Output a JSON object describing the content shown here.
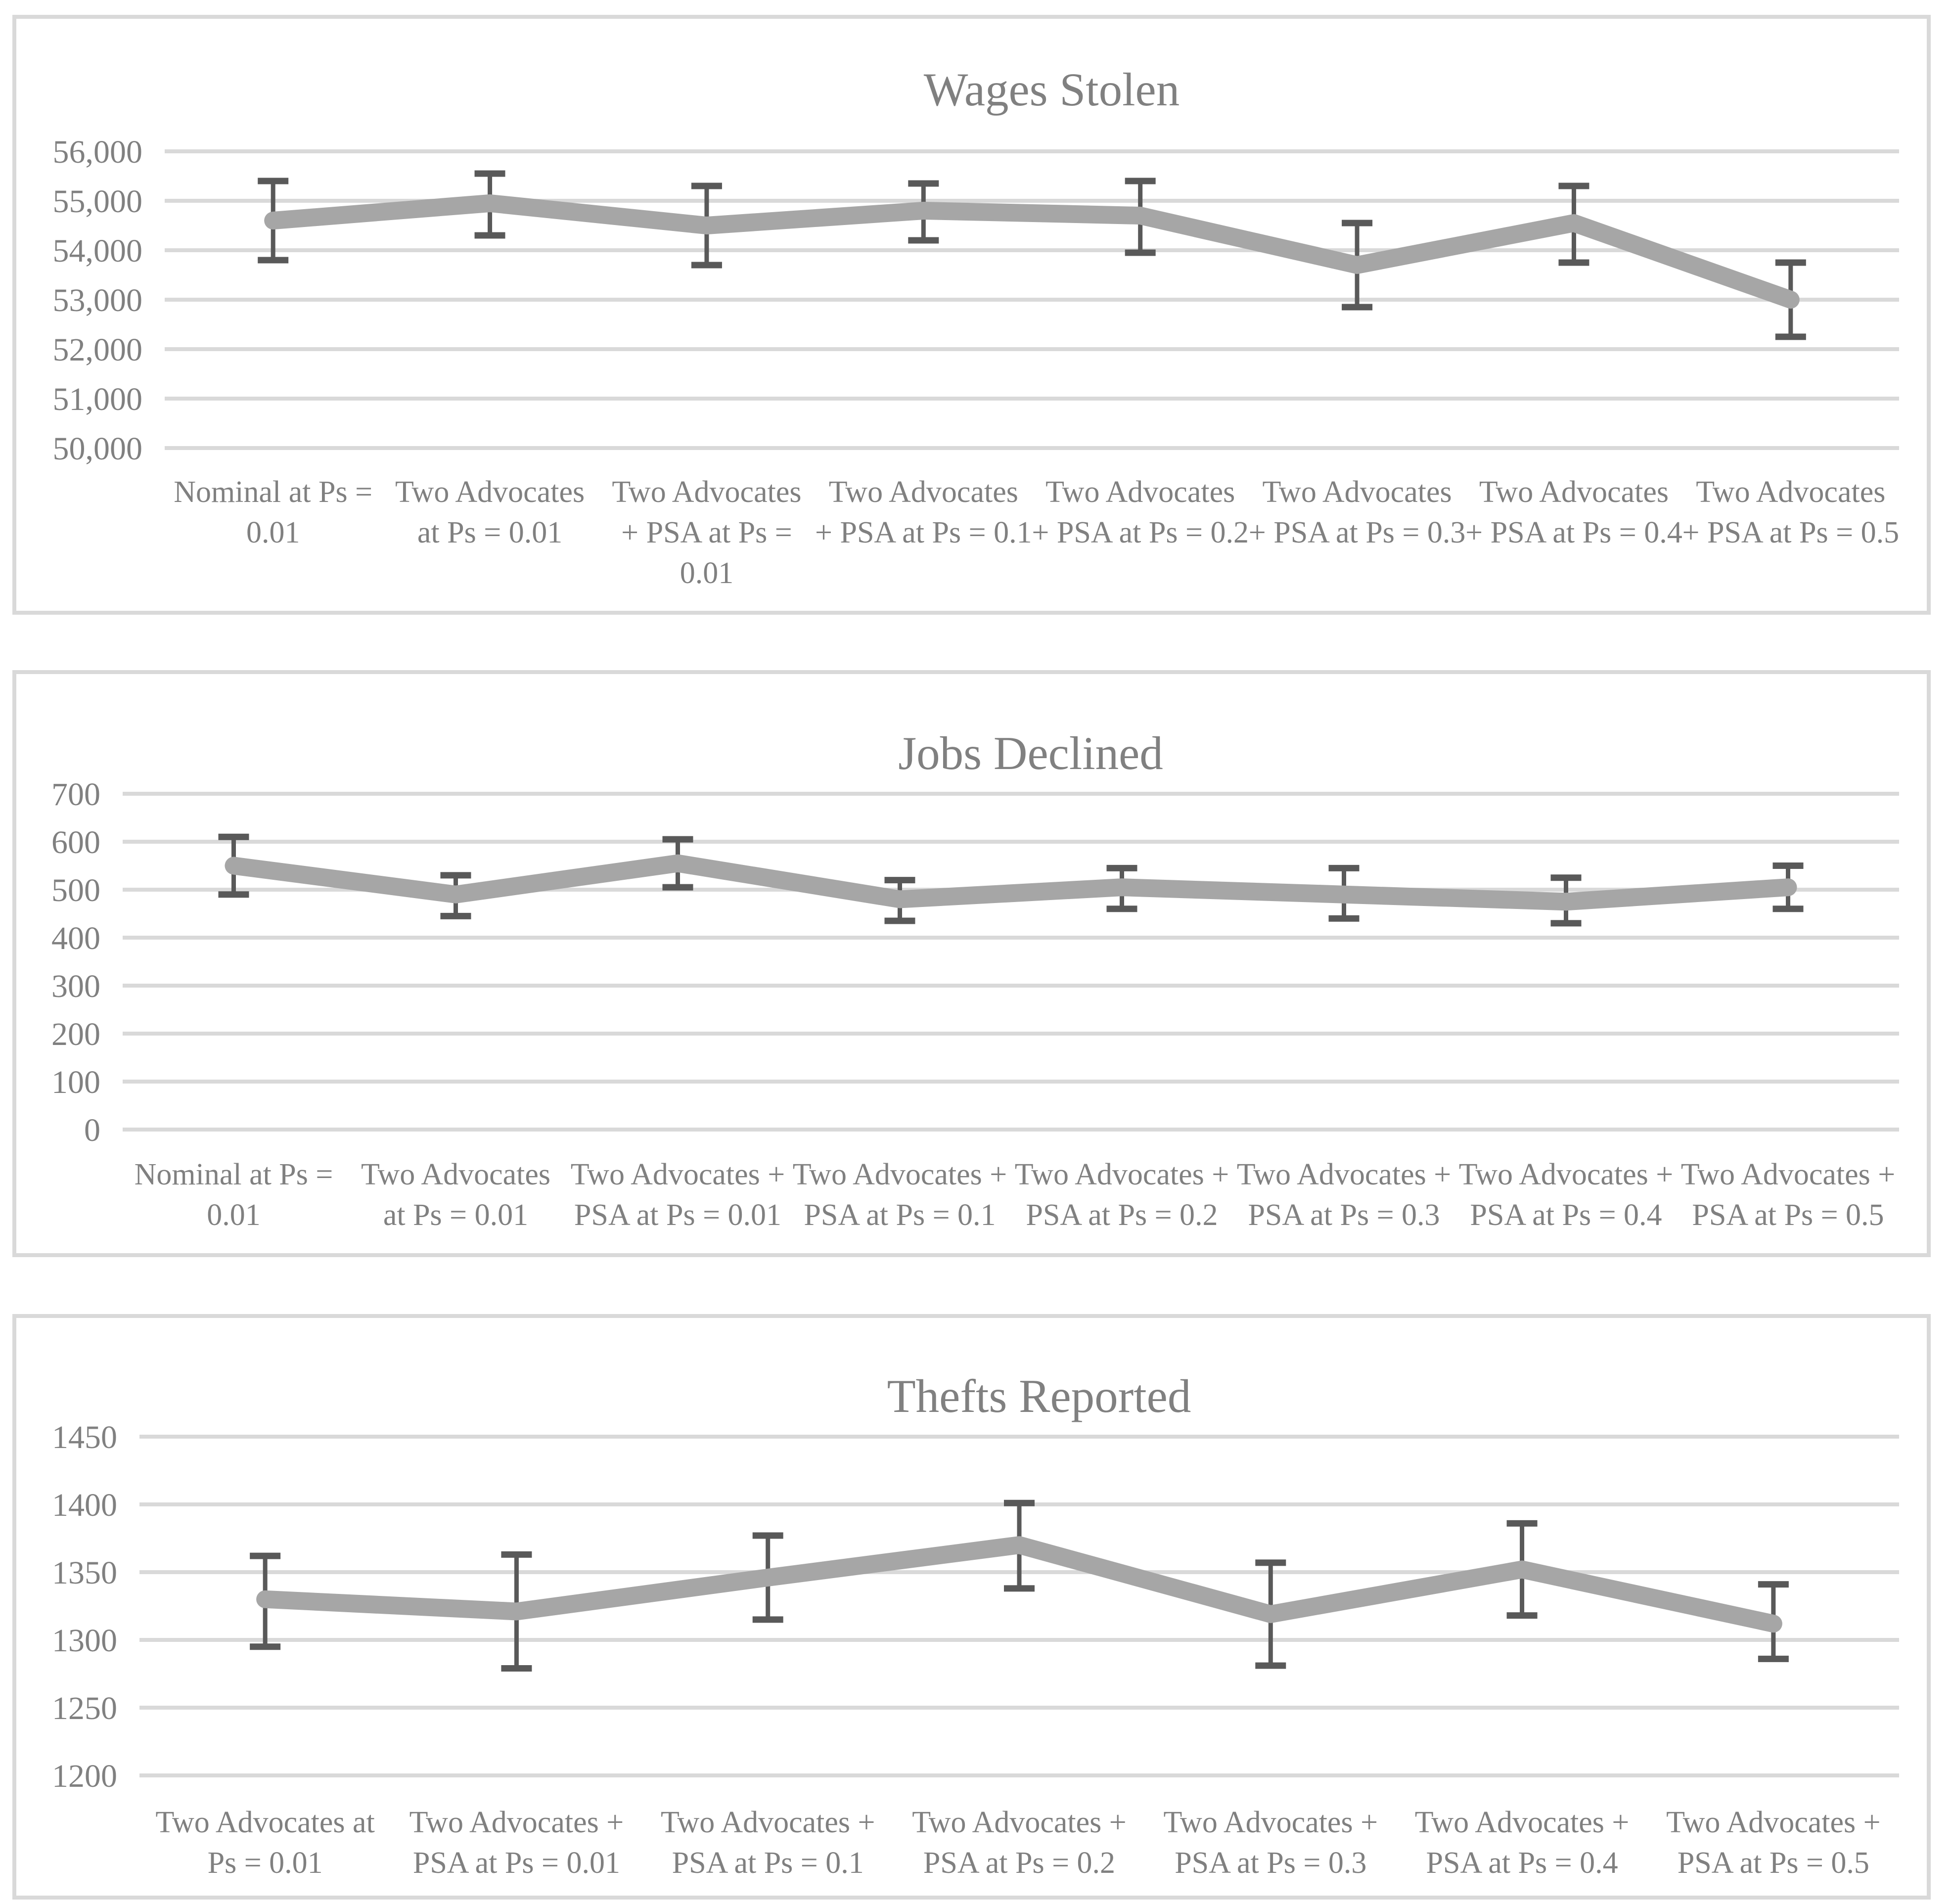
{
  "page": {
    "background": "#ffffff"
  },
  "styles": {
    "series_line_color": "#a6a6a6",
    "error_bar_color": "#595959",
    "gridline_color": "#d9d9d9",
    "panel_border_color": "#d9d9d9",
    "text_color": "#808080"
  },
  "chart_data": [
    {
      "type": "line",
      "title": "Wages Stolen",
      "legend_position": "none",
      "grid": true,
      "ylim": [
        50000,
        56000
      ],
      "ytick_step": 1000,
      "ytick_labels": [
        "56,000",
        "55,000",
        "54,000",
        "53,000",
        "52,000",
        "51,000",
        "50,000"
      ],
      "categories": [
        "Nominal at Ps = 0.01",
        "Two Advocates at Ps = 0.01",
        "Two Advocates + PSA at Ps = 0.01",
        "Two Advocates + PSA at Ps = 0.1",
        "Two Advocates + PSA at Ps = 0.2",
        "Two Advocates + PSA at Ps = 0.3",
        "Two Advocates + PSA at Ps = 0.4",
        "Two Advocates + PSA at Ps = 0.5"
      ],
      "category_label_lines": [
        [
          "Nominal at Ps =",
          "0.01"
        ],
        [
          "Two Advocates",
          "at Ps = 0.01"
        ],
        [
          "Two Advocates",
          "+ PSA at Ps =",
          "0.01"
        ],
        [
          "Two Advocates",
          "+ PSA at Ps = 0.1"
        ],
        [
          "Two Advocates",
          "+ PSA at Ps = 0.2"
        ],
        [
          "Two Advocates",
          "+ PSA at Ps = 0.3"
        ],
        [
          "Two Advocates",
          "+ PSA at Ps = 0.4"
        ],
        [
          "Two Advocates",
          "+ PSA at Ps = 0.5"
        ]
      ],
      "series": [
        {
          "name": "Wages Stolen",
          "values": [
            54600,
            54950,
            54500,
            54800,
            54700,
            53700,
            54550,
            53000
          ],
          "error_high": [
            55400,
            55550,
            55300,
            55350,
            55400,
            54550,
            55300,
            53750
          ],
          "error_low": [
            53800,
            54300,
            53700,
            54200,
            53950,
            52850,
            53750,
            52250
          ]
        }
      ]
    },
    {
      "type": "line",
      "title": "Jobs Declined",
      "legend_position": "none",
      "grid": true,
      "ylim": [
        0,
        700
      ],
      "ytick_step": 100,
      "ytick_labels": [
        "700",
        "600",
        "500",
        "400",
        "300",
        "200",
        "100",
        "0"
      ],
      "categories": [
        "Nominal at Ps = 0.01",
        "Two Advocates at Ps = 0.01",
        "Two Advocates + PSA at Ps = 0.01",
        "Two Advocates + PSA at Ps = 0.1",
        "Two Advocates + PSA at Ps = 0.2",
        "Two Advocates + PSA at Ps = 0.3",
        "Two Advocates + PSA at Ps = 0.4",
        "Two Advocates + PSA at Ps = 0.5"
      ],
      "category_label_lines": [
        [
          "Nominal at Ps =",
          "0.01"
        ],
        [
          "Two Advocates",
          "at Ps = 0.01"
        ],
        [
          "Two Advocates +",
          "PSA at Ps = 0.01"
        ],
        [
          "Two Advocates +",
          "PSA at Ps = 0.1"
        ],
        [
          "Two Advocates +",
          "PSA at Ps = 0.2"
        ],
        [
          "Two Advocates +",
          "PSA at Ps = 0.3"
        ],
        [
          "Two Advocates +",
          "PSA at Ps = 0.4"
        ],
        [
          "Two Advocates +",
          "PSA at Ps = 0.5"
        ]
      ],
      "series": [
        {
          "name": "Jobs Declined",
          "values": [
            550,
            490,
            555,
            480,
            505,
            490,
            475,
            505
          ],
          "error_high": [
            610,
            530,
            605,
            520,
            545,
            545,
            525,
            550
          ],
          "error_low": [
            490,
            445,
            505,
            435,
            460,
            440,
            430,
            460
          ]
        }
      ]
    },
    {
      "type": "line",
      "title": "Thefts Reported",
      "legend_position": "none",
      "grid": true,
      "ylim": [
        1200,
        1450
      ],
      "ytick_step": 50,
      "ytick_labels": [
        "1450",
        "1400",
        "1350",
        "1300",
        "1250",
        "1200"
      ],
      "categories": [
        "Two Advocates at Ps = 0.01",
        "Two Advocates + PSA at Ps = 0.01",
        "Two Advocates + PSA at Ps = 0.1",
        "Two Advocates + PSA at Ps = 0.2",
        "Two Advocates + PSA at Ps = 0.3",
        "Two Advocates + PSA at Ps = 0.4",
        "Two Advocates + PSA at Ps = 0.5"
      ],
      "category_label_lines": [
        [
          "Two Advocates at",
          "Ps = 0.01"
        ],
        [
          "Two Advocates +",
          "PSA at Ps = 0.01"
        ],
        [
          "Two Advocates +",
          "PSA at Ps = 0.1"
        ],
        [
          "Two Advocates +",
          "PSA at Ps = 0.2"
        ],
        [
          "Two Advocates +",
          "PSA at Ps = 0.3"
        ],
        [
          "Two Advocates +",
          "PSA at Ps = 0.4"
        ],
        [
          "Two Advocates +",
          "PSA at Ps = 0.5"
        ]
      ],
      "series": [
        {
          "name": "Thefts Reported",
          "values": [
            1330,
            1321,
            1346,
            1370,
            1319,
            1352,
            1312
          ],
          "error_high": [
            1362,
            1363,
            1377,
            1401,
            1357,
            1386,
            1341
          ],
          "error_low": [
            1295,
            1279,
            1315,
            1338,
            1281,
            1318,
            1286
          ]
        }
      ]
    }
  ]
}
